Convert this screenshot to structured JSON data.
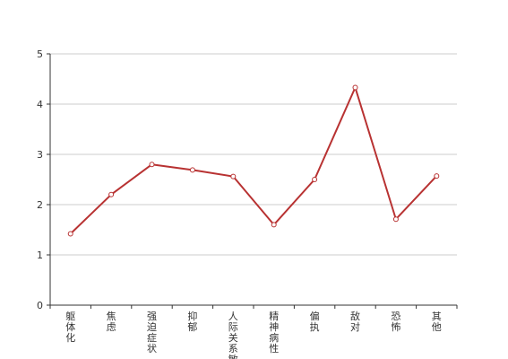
{
  "chart_data": {
    "type": "line",
    "categories": [
      "躯体化",
      "焦虑",
      "强迫症状",
      "抑郁",
      "人际关系敏感",
      "精神病性",
      "偏执",
      "敌对",
      "恐怖",
      "其他"
    ],
    "series": [
      {
        "values": [
          1.42,
          2.2,
          2.8,
          2.69,
          2.56,
          1.6,
          2.5,
          4.33,
          1.71,
          2.57
        ]
      }
    ],
    "ylim": [
      0,
      5
    ],
    "yticks": [
      0,
      1,
      2,
      3,
      4,
      5
    ],
    "grid": true,
    "colors": {
      "line": "#b83232",
      "grid": "#cccccc",
      "axis": "#333333"
    }
  }
}
